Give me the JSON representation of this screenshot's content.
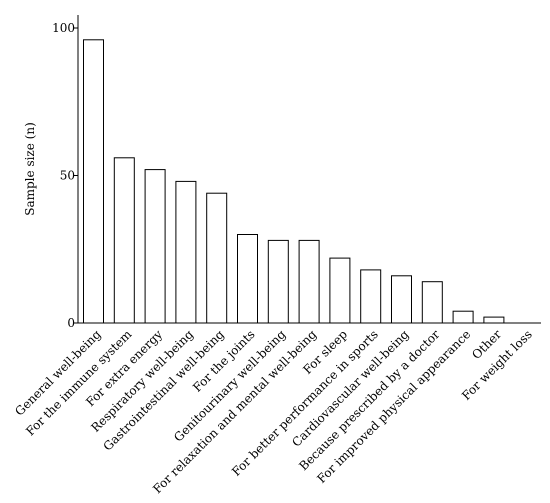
{
  "chart_data": {
    "type": "bar",
    "title": "",
    "xlabel": "",
    "ylabel": "Sample size (n)",
    "ylim": [
      0,
      100
    ],
    "yticks": [
      0,
      50,
      100
    ],
    "grid": false,
    "categories": [
      "General well-being",
      "For the immune system",
      "For extra energy",
      "Respiratory well-being",
      "Gastrointestinal well-being",
      "For the joints",
      "Genitourinary well-being",
      "For relaxation and mental well-being",
      "For sleep",
      "For better performance in sports",
      "Cardiovascular well-being",
      "Because prescribed by a doctor",
      "For improved physical appearance",
      "Other",
      "For weight loss"
    ],
    "values": [
      96,
      56,
      52,
      48,
      44,
      30,
      28,
      28,
      22,
      18,
      16,
      14,
      4,
      2,
      0
    ]
  }
}
